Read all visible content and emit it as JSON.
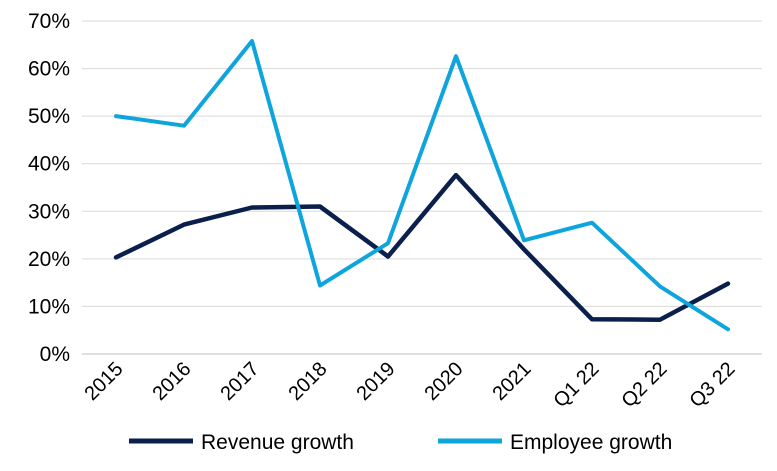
{
  "chart_data": {
    "type": "line",
    "categories": [
      "2015",
      "2016",
      "2017",
      "2018",
      "2019",
      "2020",
      "2021",
      "Q1 22",
      "Q2 22",
      "Q3 22"
    ],
    "series": [
      {
        "name": "Revenue growth",
        "color": "#0b1f4d",
        "values": [
          20.3,
          27.2,
          30.8,
          31.0,
          20.5,
          37.6,
          22.0,
          7.3,
          7.2,
          14.8
        ]
      },
      {
        "name": "Employee growth",
        "color": "#0ea5dc",
        "values": [
          50.0,
          48.0,
          65.8,
          14.4,
          23.3,
          62.6,
          23.9,
          27.6,
          14.2,
          5.2
        ]
      }
    ],
    "y_ticks": [
      "0%",
      "10%",
      "20%",
      "30%",
      "40%",
      "50%",
      "60%",
      "70%"
    ],
    "ylim": [
      0,
      70
    ],
    "y_unit": "%",
    "grid": true,
    "legend_position": "bottom"
  }
}
